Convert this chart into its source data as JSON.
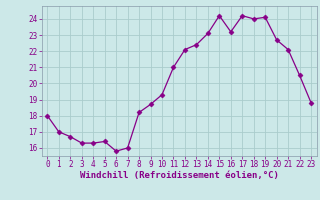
{
  "x": [
    0,
    1,
    2,
    3,
    4,
    5,
    6,
    7,
    8,
    9,
    10,
    11,
    12,
    13,
    14,
    15,
    16,
    17,
    18,
    19,
    20,
    21,
    22,
    23
  ],
  "y": [
    18.0,
    17.0,
    16.7,
    16.3,
    16.3,
    16.4,
    15.8,
    16.0,
    18.2,
    18.7,
    19.3,
    21.0,
    22.1,
    22.4,
    23.1,
    24.2,
    23.2,
    24.2,
    24.0,
    24.1,
    22.7,
    22.1,
    20.5,
    18.8
  ],
  "color": "#880088",
  "bg_color": "#cce8e8",
  "grid_color": "#aacccc",
  "xlabel": "Windchill (Refroidissement éolien,°C)",
  "ylim": [
    15.5,
    24.8
  ],
  "xlim": [
    -0.5,
    23.5
  ],
  "yticks": [
    16,
    17,
    18,
    19,
    20,
    21,
    22,
    23,
    24
  ],
  "xticks": [
    0,
    1,
    2,
    3,
    4,
    5,
    6,
    7,
    8,
    9,
    10,
    11,
    12,
    13,
    14,
    15,
    16,
    17,
    18,
    19,
    20,
    21,
    22,
    23
  ],
  "marker": "D",
  "linewidth": 0.9,
  "markersize": 2.5,
  "tick_fontsize": 5.5,
  "xlabel_fontsize": 6.5,
  "tick_color": "#880088"
}
